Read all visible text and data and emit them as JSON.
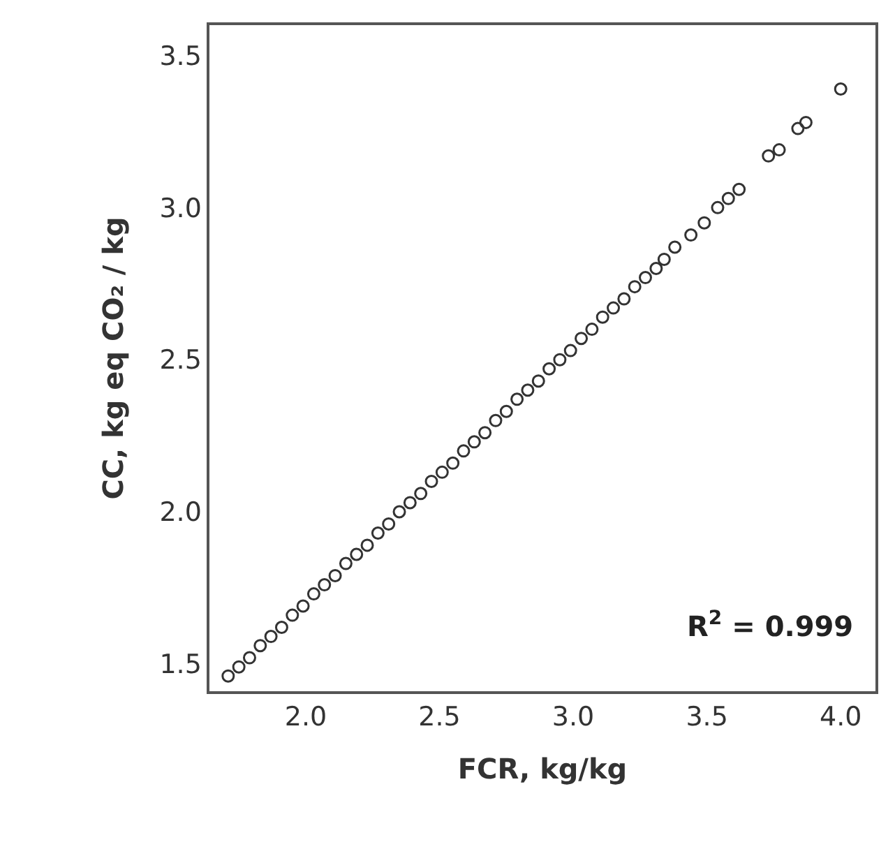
{
  "chart_data": {
    "type": "scatter",
    "xlabel": "FCR, kg/kg",
    "ylabel": "CC, kg eq CO₂ / kg",
    "annotations": [
      {
        "text": "R$^{2}$ = 0.999"
      }
    ],
    "marker": "circle",
    "xlim": [
      1.64,
      4.13
    ],
    "xticks": [
      {
        "value": 2,
        "label": "2.0"
      },
      2.5,
      {
        "value": 3,
        "label": "3.0"
      },
      3.5,
      {
        "value": 4,
        "label": "4.0"
      }
    ],
    "ylim": [
      1.41,
      3.6
    ],
    "yticks": [
      1.5,
      {
        "value": 2,
        "label": "2.0"
      },
      2.5,
      {
        "value": 3,
        "label": "3.0"
      },
      3.5
    ],
    "series": [
      {
        "color": "#333333",
        "x": [
          1.71,
          1.75,
          1.79,
          1.83,
          1.87,
          1.91,
          1.95,
          1.99,
          2.03,
          2.07,
          2.11,
          2.15,
          2.19,
          2.23,
          2.27,
          2.31,
          2.35,
          2.39,
          2.43,
          2.47,
          2.51,
          2.55,
          2.59,
          2.63,
          2.67,
          2.71,
          2.75,
          2.79,
          2.83,
          2.87,
          2.91,
          2.95,
          2.99,
          3.03,
          3.07,
          3.11,
          3.15,
          3.19,
          3.23,
          3.27,
          3.31,
          3.34,
          3.38,
          3.44,
          3.49,
          3.54,
          3.58,
          3.62,
          3.73,
          3.77,
          3.84,
          3.87,
          4.0
        ],
        "values": [
          1.46,
          1.49,
          1.52,
          1.56,
          1.59,
          1.62,
          1.66,
          1.69,
          1.73,
          1.76,
          1.79,
          1.83,
          1.86,
          1.89,
          1.93,
          1.96,
          2.0,
          2.03,
          2.06,
          2.1,
          2.13,
          2.16,
          2.2,
          2.23,
          2.26,
          2.3,
          2.33,
          2.37,
          2.4,
          2.43,
          2.47,
          2.5,
          2.53,
          2.57,
          2.6,
          2.64,
          2.67,
          2.7,
          2.74,
          2.77,
          2.8,
          2.83,
          2.87,
          2.91,
          2.95,
          3.0,
          3.03,
          3.06,
          3.17,
          3.19,
          3.26,
          3.28,
          3.39
        ]
      }
    ]
  }
}
